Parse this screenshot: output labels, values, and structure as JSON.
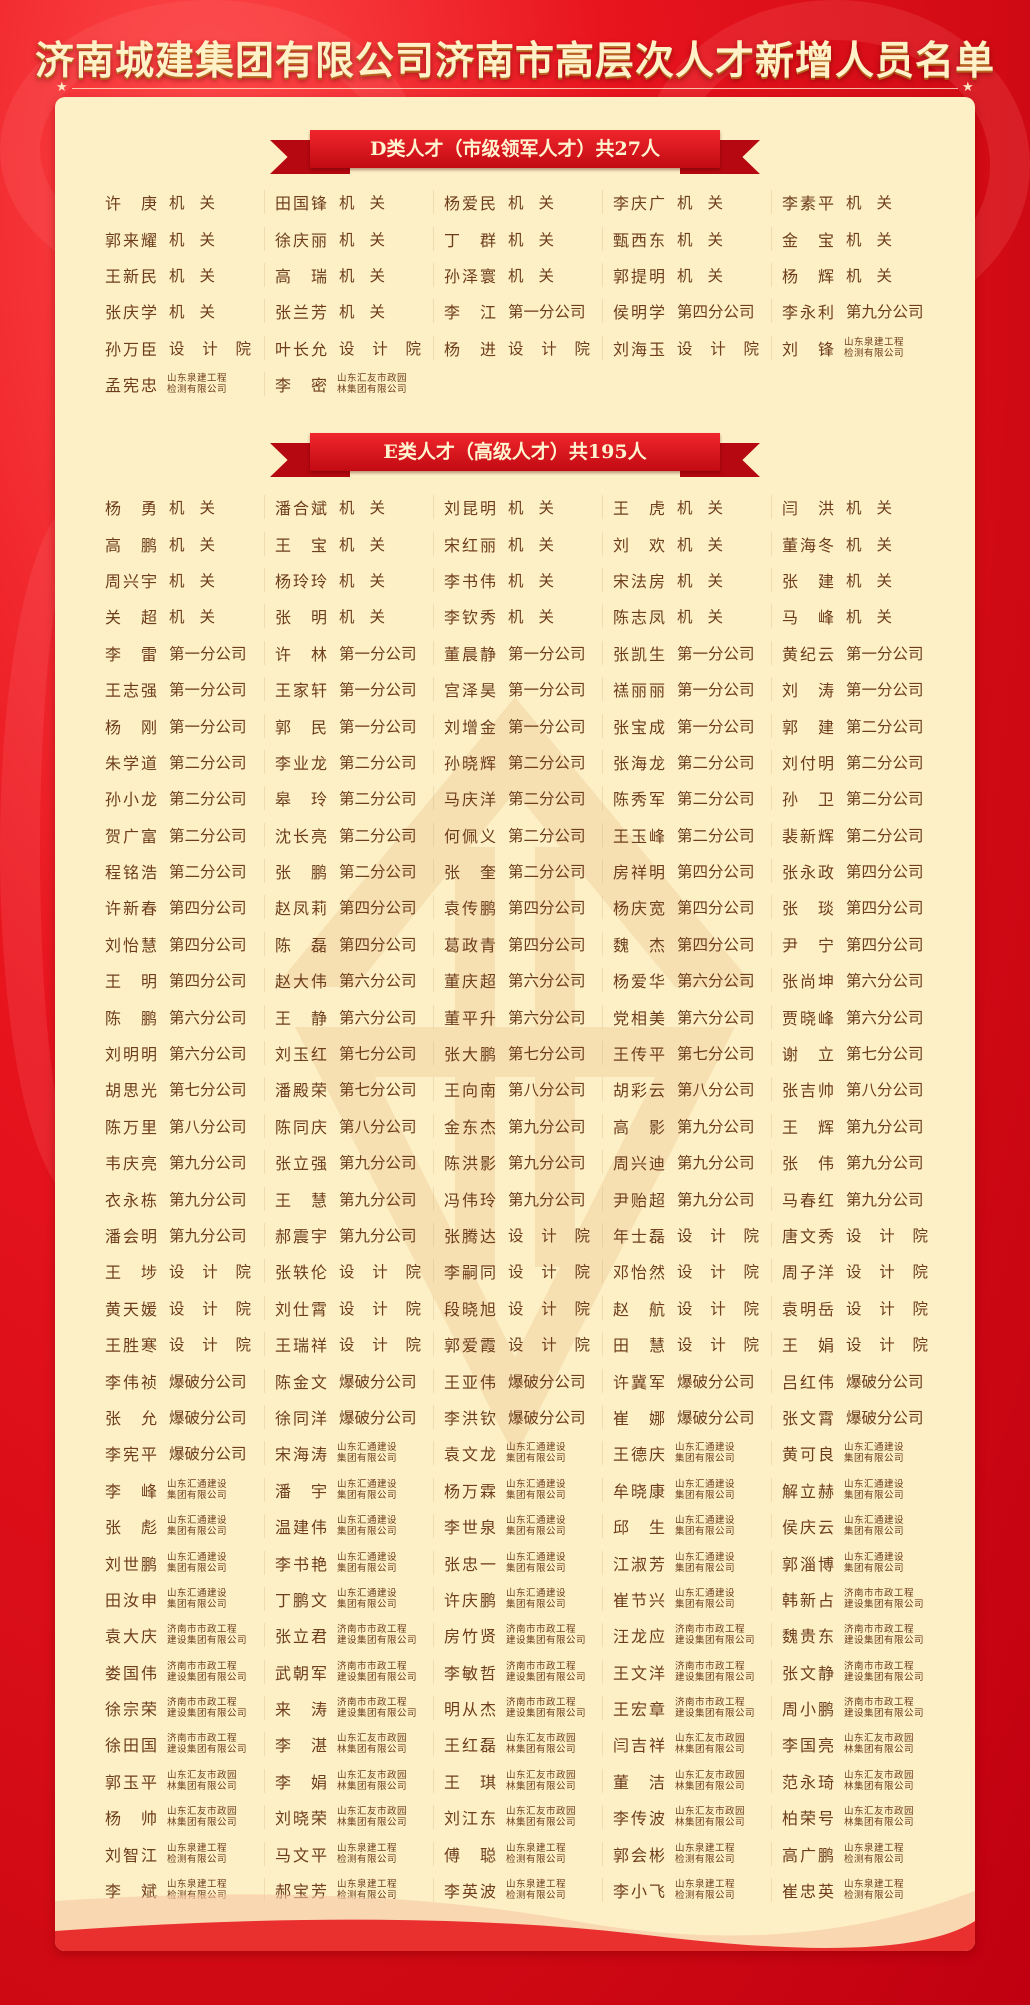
{
  "title": "济南城建集团有限公司济南市高层次人才新增人员名单",
  "colors": {
    "background": "#d00a14",
    "card": "#fdf0c6",
    "text": "#6e3d1c",
    "banner": "#d8141c"
  },
  "d_section": {
    "heading": "D类人才（市级领军人才）共27人",
    "rows": [
      [
        [
          "许庚",
          "机关"
        ],
        [
          "田国锋",
          "机关"
        ],
        [
          "杨爱民",
          "机关"
        ],
        [
          "李庆广",
          "机关"
        ],
        [
          "李素平",
          "机关"
        ]
      ],
      [
        [
          "郭来耀",
          "机关"
        ],
        [
          "徐庆丽",
          "机关"
        ],
        [
          "丁群",
          "机关"
        ],
        [
          "甄西东",
          "机关"
        ],
        [
          "金宝",
          "机关"
        ]
      ],
      [
        [
          "王新民",
          "机关"
        ],
        [
          "高瑞",
          "机关"
        ],
        [
          "孙泽寰",
          "机关"
        ],
        [
          "郭提明",
          "机关"
        ],
        [
          "杨辉",
          "机关"
        ]
      ],
      [
        [
          "张庆学",
          "机关"
        ],
        [
          "张兰芳",
          "机关"
        ],
        [
          "李江",
          "第一分公司"
        ],
        [
          "侯明学",
          "第四分公司"
        ],
        [
          "李永利",
          "第九分公司"
        ]
      ],
      [
        [
          "孙万臣",
          "设计院"
        ],
        [
          "叶长允",
          "设计院"
        ],
        [
          "杨进",
          "设计院"
        ],
        [
          "刘海玉",
          "设计院"
        ],
        [
          "刘锋",
          "山东泉建工程\n检测有限公司"
        ]
      ],
      [
        [
          "孟宪忠",
          "山东泉建工程\n检测有限公司"
        ],
        [
          "李密",
          "山东汇友市政园\n林集团有限公司"
        ]
      ]
    ]
  },
  "e_section": {
    "heading": "E类人才（高级人才）共195人",
    "rows": [
      [
        [
          "杨勇",
          "机关"
        ],
        [
          "潘合斌",
          "机关"
        ],
        [
          "刘昆明",
          "机关"
        ],
        [
          "王虎",
          "机关"
        ],
        [
          "闫洪",
          "机关"
        ]
      ],
      [
        [
          "高鹏",
          "机关"
        ],
        [
          "王宝",
          "机关"
        ],
        [
          "宋红丽",
          "机关"
        ],
        [
          "刘欢",
          "机关"
        ],
        [
          "董海冬",
          "机关"
        ]
      ],
      [
        [
          "周兴宇",
          "机关"
        ],
        [
          "杨玲玲",
          "机关"
        ],
        [
          "李书伟",
          "机关"
        ],
        [
          "宋法房",
          "机关"
        ],
        [
          "张建",
          "机关"
        ]
      ],
      [
        [
          "关超",
          "机关"
        ],
        [
          "张明",
          "机关"
        ],
        [
          "李钦秀",
          "机关"
        ],
        [
          "陈志凤",
          "机关"
        ],
        [
          "马峰",
          "机关"
        ]
      ],
      [
        [
          "李雷",
          "第一分公司"
        ],
        [
          "许林",
          "第一分公司"
        ],
        [
          "董晨静",
          "第一分公司"
        ],
        [
          "张凯生",
          "第一分公司"
        ],
        [
          "黄纪云",
          "第一分公司"
        ]
      ],
      [
        [
          "王志强",
          "第一分公司"
        ],
        [
          "王家轩",
          "第一分公司"
        ],
        [
          "宫泽昊",
          "第一分公司"
        ],
        [
          "禚丽丽",
          "第一分公司"
        ],
        [
          "刘涛",
          "第一分公司"
        ]
      ],
      [
        [
          "杨刚",
          "第一分公司"
        ],
        [
          "郭民",
          "第一分公司"
        ],
        [
          "刘增金",
          "第一分公司"
        ],
        [
          "张宝成",
          "第一分公司"
        ],
        [
          "郭建",
          "第二分公司"
        ]
      ],
      [
        [
          "朱学道",
          "第二分公司"
        ],
        [
          "李业龙",
          "第二分公司"
        ],
        [
          "孙晓辉",
          "第二分公司"
        ],
        [
          "张海龙",
          "第二分公司"
        ],
        [
          "刘付明",
          "第二分公司"
        ]
      ],
      [
        [
          "孙小龙",
          "第二分公司"
        ],
        [
          "皋玲",
          "第二分公司"
        ],
        [
          "马庆洋",
          "第二分公司"
        ],
        [
          "陈秀军",
          "第二分公司"
        ],
        [
          "孙卫",
          "第二分公司"
        ]
      ],
      [
        [
          "贺广富",
          "第二分公司"
        ],
        [
          "沈长亮",
          "第二分公司"
        ],
        [
          "何佩义",
          "第二分公司"
        ],
        [
          "王玉峰",
          "第二分公司"
        ],
        [
          "裴新辉",
          "第二分公司"
        ]
      ],
      [
        [
          "程铭浩",
          "第二分公司"
        ],
        [
          "张鹏",
          "第二分公司"
        ],
        [
          "张奎",
          "第二分公司"
        ],
        [
          "房祥明",
          "第四分公司"
        ],
        [
          "张永政",
          "第四分公司"
        ]
      ],
      [
        [
          "许新春",
          "第四分公司"
        ],
        [
          "赵凤莉",
          "第四分公司"
        ],
        [
          "袁传鹏",
          "第四分公司"
        ],
        [
          "杨庆宽",
          "第四分公司"
        ],
        [
          "张琰",
          "第四分公司"
        ]
      ],
      [
        [
          "刘怡慧",
          "第四分公司"
        ],
        [
          "陈磊",
          "第四分公司"
        ],
        [
          "葛政青",
          "第四分公司"
        ],
        [
          "魏杰",
          "第四分公司"
        ],
        [
          "尹宁",
          "第四分公司"
        ]
      ],
      [
        [
          "王明",
          "第四分公司"
        ],
        [
          "赵大伟",
          "第六分公司"
        ],
        [
          "董庆超",
          "第六分公司"
        ],
        [
          "杨爱华",
          "第六分公司"
        ],
        [
          "张尚坤",
          "第六分公司"
        ]
      ],
      [
        [
          "陈鹏",
          "第六分公司"
        ],
        [
          "王静",
          "第六分公司"
        ],
        [
          "董平升",
          "第六分公司"
        ],
        [
          "党相美",
          "第六分公司"
        ],
        [
          "贾晓峰",
          "第六分公司"
        ]
      ],
      [
        [
          "刘明明",
          "第六分公司"
        ],
        [
          "刘玉红",
          "第七分公司"
        ],
        [
          "张大鹏",
          "第七分公司"
        ],
        [
          "王传平",
          "第七分公司"
        ],
        [
          "谢立",
          "第七分公司"
        ]
      ],
      [
        [
          "胡思光",
          "第七分公司"
        ],
        [
          "潘殿荣",
          "第七分公司"
        ],
        [
          "王向南",
          "第八分公司"
        ],
        [
          "胡彩云",
          "第八分公司"
        ],
        [
          "张吉帅",
          "第八分公司"
        ]
      ],
      [
        [
          "陈万里",
          "第八分公司"
        ],
        [
          "陈同庆",
          "第八分公司"
        ],
        [
          "金东杰",
          "第九分公司"
        ],
        [
          "高影",
          "第九分公司"
        ],
        [
          "王辉",
          "第九分公司"
        ]
      ],
      [
        [
          "韦庆亮",
          "第九分公司"
        ],
        [
          "张立强",
          "第九分公司"
        ],
        [
          "陈洪影",
          "第九分公司"
        ],
        [
          "周兴迪",
          "第九分公司"
        ],
        [
          "张伟",
          "第九分公司"
        ]
      ],
      [
        [
          "衣永栋",
          "第九分公司"
        ],
        [
          "王慧",
          "第九分公司"
        ],
        [
          "冯伟玲",
          "第九分公司"
        ],
        [
          "尹贻超",
          "第九分公司"
        ],
        [
          "马春红",
          "第九分公司"
        ]
      ],
      [
        [
          "潘会明",
          "第九分公司"
        ],
        [
          "郝震宇",
          "第九分公司"
        ],
        [
          "张腾达",
          "设计院"
        ],
        [
          "年士磊",
          "设计院"
        ],
        [
          "唐文秀",
          "设计院"
        ]
      ],
      [
        [
          "王埗",
          "设计院"
        ],
        [
          "张轶伦",
          "设计院"
        ],
        [
          "李嗣同",
          "设计院"
        ],
        [
          "邓怡然",
          "设计院"
        ],
        [
          "周子洋",
          "设计院"
        ]
      ],
      [
        [
          "黄天媛",
          "设计院"
        ],
        [
          "刘仕霄",
          "设计院"
        ],
        [
          "段晓旭",
          "设计院"
        ],
        [
          "赵航",
          "设计院"
        ],
        [
          "袁明岳",
          "设计院"
        ]
      ],
      [
        [
          "王胜寒",
          "设计院"
        ],
        [
          "王瑞祥",
          "设计院"
        ],
        [
          "郭爱霞",
          "设计院"
        ],
        [
          "田慧",
          "设计院"
        ],
        [
          "王娟",
          "设计院"
        ]
      ],
      [
        [
          "李伟祯",
          "爆破分公司"
        ],
        [
          "陈金文",
          "爆破分公司"
        ],
        [
          "王亚伟",
          "爆破分公司"
        ],
        [
          "许冀军",
          "爆破分公司"
        ],
        [
          "吕红伟",
          "爆破分公司"
        ]
      ],
      [
        [
          "张允",
          "爆破分公司"
        ],
        [
          "徐同洋",
          "爆破分公司"
        ],
        [
          "李洪钦",
          "爆破分公司"
        ],
        [
          "崔娜",
          "爆破分公司"
        ],
        [
          "张文霄",
          "爆破分公司"
        ]
      ],
      [
        [
          "李宪平",
          "爆破分公司"
        ],
        [
          "宋海涛",
          "山东汇通建设\n集团有限公司"
        ],
        [
          "袁文龙",
          "山东汇通建设\n集团有限公司"
        ],
        [
          "王德庆",
          "山东汇通建设\n集团有限公司"
        ],
        [
          "黄可良",
          "山东汇通建设\n集团有限公司"
        ]
      ],
      [
        [
          "李峰",
          "山东汇通建设\n集团有限公司"
        ],
        [
          "潘宇",
          "山东汇通建设\n集团有限公司"
        ],
        [
          "杨万霖",
          "山东汇通建设\n集团有限公司"
        ],
        [
          "牟晓康",
          "山东汇通建设\n集团有限公司"
        ],
        [
          "解立赫",
          "山东汇通建设\n集团有限公司"
        ]
      ],
      [
        [
          "张彪",
          "山东汇通建设\n集团有限公司"
        ],
        [
          "温建伟",
          "山东汇通建设\n集团有限公司"
        ],
        [
          "李世泉",
          "山东汇通建设\n集团有限公司"
        ],
        [
          "邱生",
          "山东汇通建设\n集团有限公司"
        ],
        [
          "侯庆云",
          "山东汇通建设\n集团有限公司"
        ]
      ],
      [
        [
          "刘世鹏",
          "山东汇通建设\n集团有限公司"
        ],
        [
          "李书艳",
          "山东汇通建设\n集团有限公司"
        ],
        [
          "张忠一",
          "山东汇通建设\n集团有限公司"
        ],
        [
          "江淑芳",
          "山东汇通建设\n集团有限公司"
        ],
        [
          "郭淄博",
          "山东汇通建设\n集团有限公司"
        ]
      ],
      [
        [
          "田汝申",
          "山东汇通建设\n集团有限公司"
        ],
        [
          "丁鹏文",
          "山东汇通建设\n集团有限公司"
        ],
        [
          "许庆鹏",
          "山东汇通建设\n集团有限公司"
        ],
        [
          "崔节兴",
          "山东汇通建设\n集团有限公司"
        ],
        [
          "韩新占",
          "济南市市政工程\n建设集团有限公司"
        ]
      ],
      [
        [
          "袁大庆",
          "济南市市政工程\n建设集团有限公司"
        ],
        [
          "张立君",
          "济南市市政工程\n建设集团有限公司"
        ],
        [
          "房竹贤",
          "济南市市政工程\n建设集团有限公司"
        ],
        [
          "汪龙应",
          "济南市市政工程\n建设集团有限公司"
        ],
        [
          "魏贵东",
          "济南市市政工程\n建设集团有限公司"
        ]
      ],
      [
        [
          "娄国伟",
          "济南市市政工程\n建设集团有限公司"
        ],
        [
          "武朝军",
          "济南市市政工程\n建设集团有限公司"
        ],
        [
          "李敏哲",
          "济南市市政工程\n建设集团有限公司"
        ],
        [
          "王文洋",
          "济南市市政工程\n建设集团有限公司"
        ],
        [
          "张文静",
          "济南市市政工程\n建设集团有限公司"
        ]
      ],
      [
        [
          "徐宗荣",
          "济南市市政工程\n建设集团有限公司"
        ],
        [
          "来涛",
          "济南市市政工程\n建设集团有限公司"
        ],
        [
          "明从杰",
          "济南市市政工程\n建设集团有限公司"
        ],
        [
          "王宏章",
          "济南市市政工程\n建设集团有限公司"
        ],
        [
          "周小鹏",
          "济南市市政工程\n建设集团有限公司"
        ]
      ],
      [
        [
          "徐田国",
          "济南市市政工程\n建设集团有限公司"
        ],
        [
          "李湛",
          "山东汇友市政园\n林集团有限公司"
        ],
        [
          "王红磊",
          "山东汇友市政园\n林集团有限公司"
        ],
        [
          "闫吉祥",
          "山东汇友市政园\n林集团有限公司"
        ],
        [
          "李国亮",
          "山东汇友市政园\n林集团有限公司"
        ]
      ],
      [
        [
          "郭玉平",
          "山东汇友市政园\n林集团有限公司"
        ],
        [
          "李娟",
          "山东汇友市政园\n林集团有限公司"
        ],
        [
          "王琪",
          "山东汇友市政园\n林集团有限公司"
        ],
        [
          "董洁",
          "山东汇友市政园\n林集团有限公司"
        ],
        [
          "范永琦",
          "山东汇友市政园\n林集团有限公司"
        ]
      ],
      [
        [
          "杨帅",
          "山东汇友市政园\n林集团有限公司"
        ],
        [
          "刘晓荣",
          "山东汇友市政园\n林集团有限公司"
        ],
        [
          "刘江东",
          "山东汇友市政园\n林集团有限公司"
        ],
        [
          "李传波",
          "山东汇友市政园\n林集团有限公司"
        ],
        [
          "柏荣号",
          "山东汇友市政园\n林集团有限公司"
        ]
      ],
      [
        [
          "刘智江",
          "山东泉建工程\n检测有限公司"
        ],
        [
          "马文平",
          "山东泉建工程\n检测有限公司"
        ],
        [
          "傅聪",
          "山东泉建工程\n检测有限公司"
        ],
        [
          "郭会彬",
          "山东泉建工程\n检测有限公司"
        ],
        [
          "高广鹏",
          "山东泉建工程\n检测有限公司"
        ]
      ],
      [
        [
          "李斌",
          "山东泉建工程\n检测有限公司"
        ],
        [
          "郝宝芳",
          "山东泉建工程\n检测有限公司"
        ],
        [
          "李英波",
          "山东泉建工程\n检测有限公司"
        ],
        [
          "李小飞",
          "山东泉建工程\n检测有限公司"
        ],
        [
          "崔忠英",
          "山东泉建工程\n检测有限公司"
        ]
      ]
    ]
  }
}
